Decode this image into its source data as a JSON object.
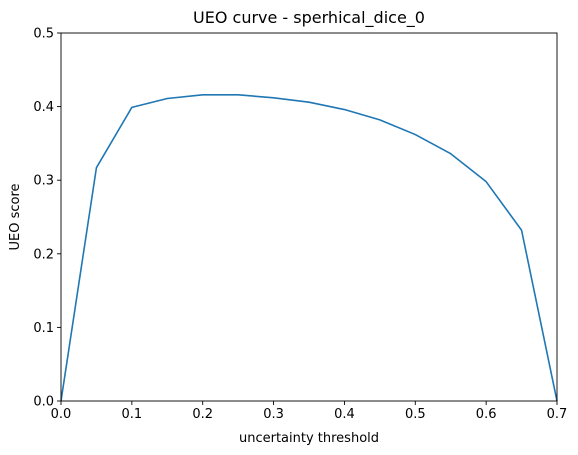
{
  "chart_data": {
    "type": "line",
    "title": "UEO curve - sperhical_dice_0",
    "xlabel": "uncertainty threshold",
    "ylabel": "UEO score",
    "xlim": [
      0.0,
      0.7
    ],
    "ylim": [
      0.0,
      0.5
    ],
    "xticks": [
      "0.0",
      "0.1",
      "0.2",
      "0.3",
      "0.4",
      "0.5",
      "0.6",
      "0.7"
    ],
    "yticks": [
      "0.0",
      "0.1",
      "0.2",
      "0.3",
      "0.4",
      "0.5"
    ],
    "grid": false,
    "line_color": "#1f77b4",
    "series": [
      {
        "x": [
          0.0,
          0.05,
          0.1,
          0.15,
          0.2,
          0.25,
          0.3,
          0.35,
          0.4,
          0.45,
          0.5,
          0.55,
          0.6,
          0.65,
          0.7
        ],
        "values": [
          0.0,
          0.317,
          0.399,
          0.411,
          0.416,
          0.416,
          0.412,
          0.406,
          0.396,
          0.382,
          0.362,
          0.336,
          0.298,
          0.232,
          0.0
        ]
      }
    ]
  }
}
